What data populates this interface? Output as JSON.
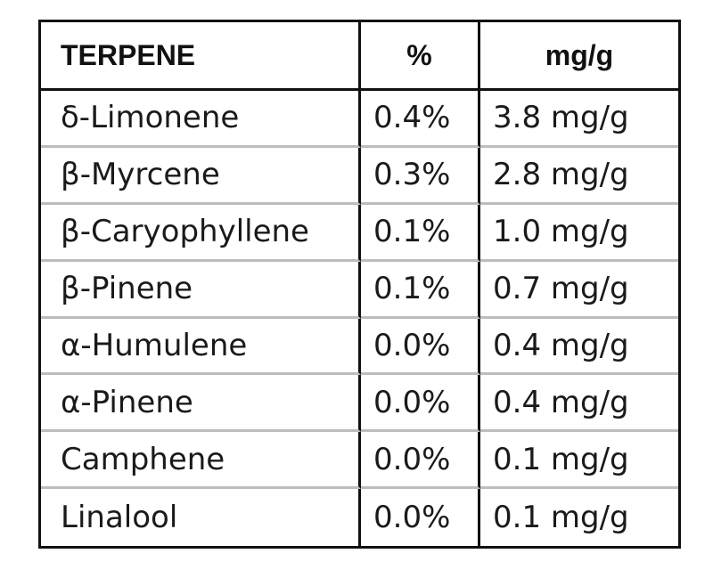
{
  "table": {
    "headers": [
      "TERPENE",
      "%",
      "mg/g"
    ],
    "rows": [
      [
        "δ-Limonene",
        "0.4%",
        "3.8 mg/g"
      ],
      [
        "β-Myrcene",
        "0.3%",
        "2.8 mg/g"
      ],
      [
        "β-Caryophyllene",
        "0.1%",
        "1.0 mg/g"
      ],
      [
        "β-Pinene",
        "0.1%",
        "0.7 mg/g"
      ],
      [
        "α-Humulene",
        "0.0%",
        "0.4 mg/g"
      ],
      [
        "α-Pinene",
        "0.0%",
        "0.4 mg/g"
      ],
      [
        "Camphene",
        "0.0%",
        "0.1 mg/g"
      ],
      [
        "Linalool",
        "0.0%",
        "0.1 mg/g"
      ]
    ]
  },
  "colors": {
    "border": "#111111",
    "row_divider": "#bdbdbd",
    "text": "#1a1a1a",
    "background": "#ffffff"
  }
}
